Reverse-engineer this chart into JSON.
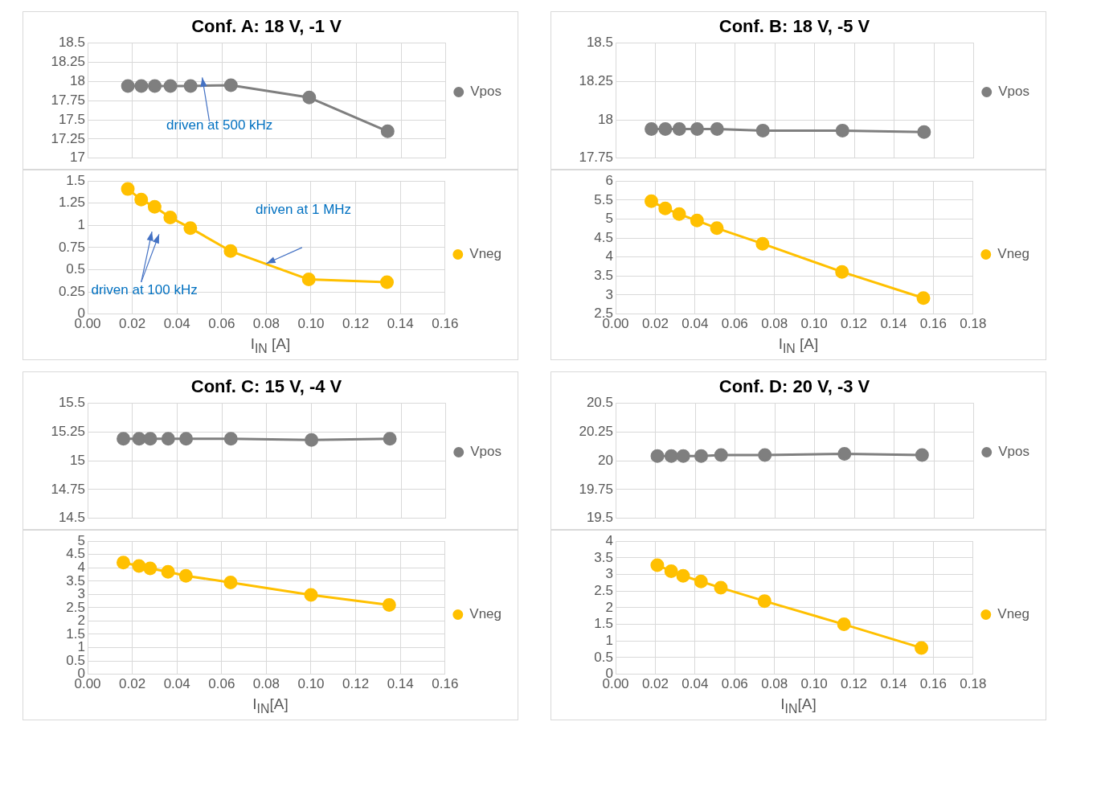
{
  "chart_data": [
    {
      "type": "line",
      "title": "Conf. A: 18 V, -1 V",
      "x": [
        0.018,
        0.024,
        0.03,
        0.037,
        0.046,
        0.064,
        0.099,
        0.134
      ],
      "series": [
        {
          "name": "Vpos",
          "color": "#7f7f7f",
          "values": [
            17.94,
            17.94,
            17.94,
            17.94,
            17.94,
            17.95,
            17.79,
            17.35
          ]
        }
      ],
      "xlim": [
        0,
        0.16
      ],
      "xticks": [
        {
          "value": 0,
          "label": null
        },
        {
          "value": 0.02,
          "label": null
        },
        {
          "value": 0.04,
          "label": null
        },
        {
          "value": 0.06,
          "label": null
        },
        {
          "value": 0.08,
          "label": null
        },
        {
          "value": 0.1,
          "label": null
        },
        {
          "value": 0.12,
          "label": null
        },
        {
          "value": 0.14,
          "label": null
        },
        {
          "value": 0.16,
          "label": null
        }
      ],
      "ylim": [
        17,
        18.5
      ],
      "yticks": [
        17,
        17.25,
        17.5,
        17.75,
        18,
        18.25,
        18.5
      ],
      "tick_labels": "y",
      "grid": true,
      "legend": "right",
      "marker": "circle",
      "annotations": [
        "driven at 500 kHz"
      ]
    },
    {
      "type": "line",
      "xlabel": "I$_{IN}$ [A]",
      "x": [
        0.018,
        0.024,
        0.03,
        0.037,
        0.046,
        0.064,
        0.099,
        0.134
      ],
      "series": [
        {
          "name": "Vneg",
          "color": "#ffc000",
          "values": [
            1.41,
            1.29,
            1.21,
            1.09,
            0.97,
            0.71,
            0.39,
            0.36
          ]
        }
      ],
      "xlim": [
        0,
        0.16
      ],
      "xticks": [
        {
          "value": 0,
          "label": "0.00"
        },
        {
          "value": 0.02,
          "label": "0.02"
        },
        {
          "value": 0.04,
          "label": "0.04"
        },
        {
          "value": 0.06,
          "label": "0.06"
        },
        {
          "value": 0.08,
          "label": "0.08"
        },
        {
          "value": 0.1,
          "label": "0.10"
        },
        {
          "value": 0.12,
          "label": "0.12"
        },
        {
          "value": 0.14,
          "label": "0.14"
        },
        {
          "value": 0.16,
          "label": "0.16"
        }
      ],
      "ylim": [
        0,
        1.5
      ],
      "yticks": [
        0,
        0.25,
        0.5,
        0.75,
        1,
        1.25,
        1.5
      ],
      "grid": true,
      "legend": "right",
      "marker": "circle",
      "annotations": [
        "driven at 1 MHz",
        "driven at 100 kHz"
      ]
    },
    {
      "type": "line",
      "title": "Conf. B: 18 V, -5 V",
      "x": [
        0.018,
        0.025,
        0.032,
        0.041,
        0.051,
        0.074,
        0.114,
        0.155
      ],
      "series": [
        {
          "name": "Vpos",
          "color": "#7f7f7f",
          "values": [
            17.94,
            17.94,
            17.94,
            17.94,
            17.94,
            17.93,
            17.93,
            17.92
          ]
        }
      ],
      "xlim": [
        0,
        0.18
      ],
      "xticks": [
        {
          "value": 0,
          "label": null
        },
        {
          "value": 0.02,
          "label": null
        },
        {
          "value": 0.04,
          "label": null
        },
        {
          "value": 0.06,
          "label": null
        },
        {
          "value": 0.08,
          "label": null
        },
        {
          "value": 0.1,
          "label": null
        },
        {
          "value": 0.12,
          "label": null
        },
        {
          "value": 0.14,
          "label": null
        },
        {
          "value": 0.16,
          "label": null
        },
        {
          "value": 0.18,
          "label": null
        }
      ],
      "ylim": [
        17.75,
        18.5
      ],
      "yticks": [
        17.75,
        18,
        18.25,
        18.5
      ],
      "tick_labels": "y",
      "grid": true,
      "legend": "right",
      "marker": "circle"
    },
    {
      "type": "line",
      "xlabel": "I$_{IN}$ [A]",
      "x": [
        0.018,
        0.025,
        0.032,
        0.041,
        0.051,
        0.074,
        0.114,
        0.155
      ],
      "series": [
        {
          "name": "Vneg",
          "color": "#ffc000",
          "values": [
            5.47,
            5.28,
            5.13,
            4.96,
            4.76,
            4.35,
            3.61,
            2.92
          ]
        }
      ],
      "xlim": [
        0,
        0.18
      ],
      "xticks": [
        {
          "value": 0,
          "label": "0.00"
        },
        {
          "value": 0.02,
          "label": "0.02"
        },
        {
          "value": 0.04,
          "label": "0.04"
        },
        {
          "value": 0.06,
          "label": "0.06"
        },
        {
          "value": 0.08,
          "label": "0.08"
        },
        {
          "value": 0.1,
          "label": "0.10"
        },
        {
          "value": 0.12,
          "label": "0.12"
        },
        {
          "value": 0.14,
          "label": "0.14"
        },
        {
          "value": 0.16,
          "label": "0.16"
        },
        {
          "value": 0.18,
          "label": "0.18"
        }
      ],
      "ylim": [
        2.5,
        6
      ],
      "yticks": [
        2.5,
        3,
        3.5,
        4,
        4.5,
        5,
        5.5,
        6
      ],
      "grid": true,
      "legend": "right",
      "marker": "circle"
    },
    {
      "type": "line",
      "title": "Conf. C: 15 V, -4 V",
      "x": [
        0.016,
        0.023,
        0.028,
        0.036,
        0.044,
        0.064,
        0.1,
        0.135
      ],
      "series": [
        {
          "name": "Vpos",
          "color": "#7f7f7f",
          "values": [
            15.19,
            15.19,
            15.19,
            15.19,
            15.19,
            15.19,
            15.18,
            15.19
          ]
        }
      ],
      "xlim": [
        0,
        0.16
      ],
      "xticks": [
        {
          "value": 0,
          "label": null
        },
        {
          "value": 0.02,
          "label": null
        },
        {
          "value": 0.04,
          "label": null
        },
        {
          "value": 0.06,
          "label": null
        },
        {
          "value": 0.08,
          "label": null
        },
        {
          "value": 0.1,
          "label": null
        },
        {
          "value": 0.12,
          "label": null
        },
        {
          "value": 0.14,
          "label": null
        },
        {
          "value": 0.16,
          "label": null
        }
      ],
      "ylim": [
        14.5,
        15.5
      ],
      "yticks": [
        14.5,
        14.75,
        15,
        15.25,
        15.5
      ],
      "tick_labels": "y",
      "grid": true,
      "legend": "right",
      "marker": "circle"
    },
    {
      "type": "line",
      "xlabel": "I$_{IN}$[A]",
      "x": [
        0.016,
        0.023,
        0.028,
        0.036,
        0.044,
        0.064,
        0.1,
        0.135
      ],
      "series": [
        {
          "name": "Vneg",
          "color": "#ffc000",
          "values": [
            4.2,
            4.07,
            3.98,
            3.85,
            3.7,
            3.45,
            2.98,
            2.6
          ]
        }
      ],
      "xlim": [
        0,
        0.16
      ],
      "xticks": [
        {
          "value": 0,
          "label": "0.00"
        },
        {
          "value": 0.02,
          "label": "0.02"
        },
        {
          "value": 0.04,
          "label": "0.04"
        },
        {
          "value": 0.06,
          "label": "0.06"
        },
        {
          "value": 0.08,
          "label": "0.08"
        },
        {
          "value": 0.1,
          "label": "0.10"
        },
        {
          "value": 0.12,
          "label": "0.12"
        },
        {
          "value": 0.14,
          "label": "0.14"
        },
        {
          "value": 0.16,
          "label": "0.16"
        }
      ],
      "ylim": [
        0,
        5
      ],
      "yticks": [
        0,
        0.5,
        1,
        1.5,
        2,
        2.5,
        3,
        3.5,
        4,
        4.5,
        5
      ],
      "grid": true,
      "legend": "right",
      "marker": "circle"
    },
    {
      "type": "line",
      "title": "Conf. D: 20 V, -3 V",
      "x": [
        0.021,
        0.028,
        0.034,
        0.043,
        0.053,
        0.075,
        0.115,
        0.154
      ],
      "series": [
        {
          "name": "Vpos",
          "color": "#7f7f7f",
          "values": [
            20.04,
            20.04,
            20.04,
            20.04,
            20.05,
            20.05,
            20.06,
            20.05
          ]
        }
      ],
      "xlim": [
        0,
        0.18
      ],
      "xticks": [
        {
          "value": 0,
          "label": null
        },
        {
          "value": 0.02,
          "label": null
        },
        {
          "value": 0.04,
          "label": null
        },
        {
          "value": 0.06,
          "label": null
        },
        {
          "value": 0.08,
          "label": null
        },
        {
          "value": 0.1,
          "label": null
        },
        {
          "value": 0.12,
          "label": null
        },
        {
          "value": 0.14,
          "label": null
        },
        {
          "value": 0.16,
          "label": null
        },
        {
          "value": 0.18,
          "label": null
        }
      ],
      "ylim": [
        19.5,
        20.5
      ],
      "yticks": [
        19.5,
        19.75,
        20,
        20.25,
        20.5
      ],
      "tick_labels": "y",
      "grid": true,
      "legend": "right",
      "marker": "circle"
    },
    {
      "type": "line",
      "xlabel": "I$_{IN}$[A]",
      "x": [
        0.021,
        0.028,
        0.034,
        0.043,
        0.053,
        0.075,
        0.115,
        0.154
      ],
      "series": [
        {
          "name": "Vneg",
          "color": "#ffc000",
          "values": [
            3.28,
            3.1,
            2.96,
            2.79,
            2.6,
            2.2,
            1.5,
            0.79
          ]
        }
      ],
      "xlim": [
        0,
        0.18
      ],
      "xticks": [
        {
          "value": 0,
          "label": "0.00"
        },
        {
          "value": 0.02,
          "label": "0.02"
        },
        {
          "value": 0.04,
          "label": "0.04"
        },
        {
          "value": 0.06,
          "label": "0.06"
        },
        {
          "value": 0.08,
          "label": "0.08"
        },
        {
          "value": 0.1,
          "label": "0.10"
        },
        {
          "value": 0.12,
          "label": "0.12"
        },
        {
          "value": 0.14,
          "label": "0.14"
        },
        {
          "value": 0.16,
          "label": "0.16"
        },
        {
          "value": 0.18,
          "label": "0.18"
        }
      ],
      "ylim": [
        0,
        4
      ],
      "yticks": [
        0,
        0.5,
        1,
        1.5,
        2,
        2.5,
        3,
        3.5,
        4
      ],
      "grid": true,
      "legend": "right",
      "marker": "circle"
    }
  ]
}
